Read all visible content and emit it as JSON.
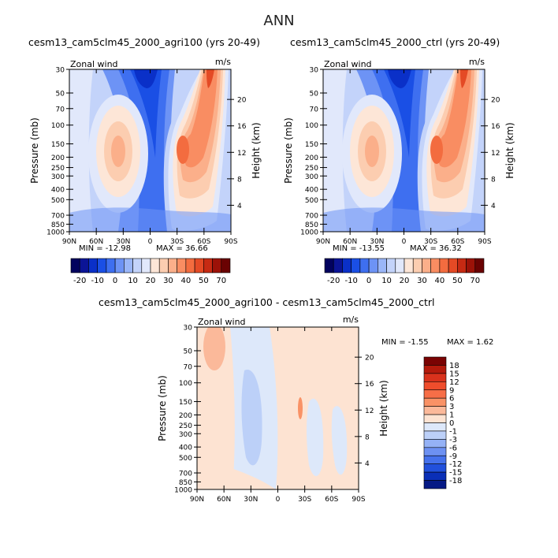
{
  "page": {
    "title": "ANN"
  },
  "chart_data": [
    {
      "type": "heatmap",
      "title": "cesm13_cam5clm45_2000_agri100 (yrs 20-49)",
      "left_label": "Zonal wind",
      "right_label": "m/s",
      "xlabel": "",
      "ylabel": "Pressure (mb)",
      "ylabel_right": "Height (km)",
      "x_ticks": [
        "90N",
        "60N",
        "30N",
        "0",
        "30S",
        "60S",
        "90S"
      ],
      "y_ticks": [
        30,
        50,
        70,
        100,
        150,
        200,
        250,
        300,
        400,
        500,
        700,
        850,
        1000
      ],
      "height_ticks": [
        4,
        8,
        12,
        16,
        20
      ],
      "ylim": [
        1000,
        30
      ],
      "min_text": "MIN = -12.98",
      "max_text": "MAX =  36.66",
      "features": [
        {
          "x": 35,
          "p": 200,
          "value": 24
        },
        {
          "x": -38,
          "p": 180,
          "value": 36.66
        },
        {
          "x": 0,
          "p": 40,
          "value": -12.98
        }
      ]
    },
    {
      "type": "heatmap",
      "title": "cesm13_cam5clm45_2000_ctrl (yrs 20-49)",
      "left_label": "Zonal wind",
      "right_label": "m/s",
      "xlabel": "",
      "ylabel": "Pressure (mb)",
      "ylabel_right": "Height (km)",
      "x_ticks": [
        "90N",
        "60N",
        "30N",
        "0",
        "30S",
        "60S",
        "90S"
      ],
      "y_ticks": [
        30,
        50,
        70,
        100,
        150,
        200,
        250,
        300,
        400,
        500,
        700,
        850,
        1000
      ],
      "height_ticks": [
        4,
        8,
        12,
        16,
        20
      ],
      "ylim": [
        1000,
        30
      ],
      "min_text": "MIN = -13.55",
      "max_text": "MAX =  36.32",
      "features": [
        {
          "x": 35,
          "p": 200,
          "value": 24
        },
        {
          "x": -38,
          "p": 180,
          "value": 36.32
        },
        {
          "x": 0,
          "p": 40,
          "value": -13.55
        }
      ]
    },
    {
      "type": "heatmap",
      "title": "cesm13_cam5clm45_2000_agri100 - cesm13_cam5clm45_2000_ctrl",
      "left_label": "Zonal wind",
      "right_label": "m/s",
      "xlabel": "",
      "ylabel": "Pressure (mb)",
      "ylabel_right": "Height (km)",
      "x_ticks": [
        "90N",
        "60N",
        "30N",
        "0",
        "30S",
        "60S",
        "90S"
      ],
      "y_ticks": [
        30,
        50,
        70,
        100,
        150,
        200,
        250,
        300,
        400,
        500,
        700,
        850,
        1000
      ],
      "height_ticks": [
        4,
        8,
        12,
        16,
        20
      ],
      "ylim": [
        1000,
        30
      ],
      "min_text": "MIN =   -1.55",
      "max_text": "MAX =    1.62"
    }
  ],
  "colorbar_top": {
    "labels": [
      "-20",
      "-10",
      "0",
      "10",
      "20",
      "30",
      "40",
      "50",
      "70"
    ],
    "colors": [
      "#02025e",
      "#0b1496",
      "#0a30c8",
      "#1a4fe5",
      "#3e6ff0",
      "#6d93f5",
      "#9ab6f8",
      "#c3d3fa",
      "#e1e8fb",
      "#fde6d7",
      "#fccdb0",
      "#fbaf8a",
      "#f98d62",
      "#f36c3f",
      "#e44a25",
      "#c62a13",
      "#9c1208",
      "#6a0202"
    ]
  },
  "colorbar_diff": {
    "labels": [
      "18",
      "15",
      "12",
      "9",
      "6",
      "3",
      "1",
      "0",
      "-1",
      "-3",
      "-6",
      "-9",
      "-12",
      "-15",
      "-18"
    ],
    "colors": [
      "#7a0303",
      "#b41a0c",
      "#d9321c",
      "#ef4d2c",
      "#f76e47",
      "#f99266",
      "#fbb99a",
      "#fde3d2",
      "#dde8fa",
      "#bcd0f8",
      "#95b2f6",
      "#6d91f2",
      "#4571ec",
      "#2150dc",
      "#0a2fb7",
      "#061a85"
    ]
  }
}
